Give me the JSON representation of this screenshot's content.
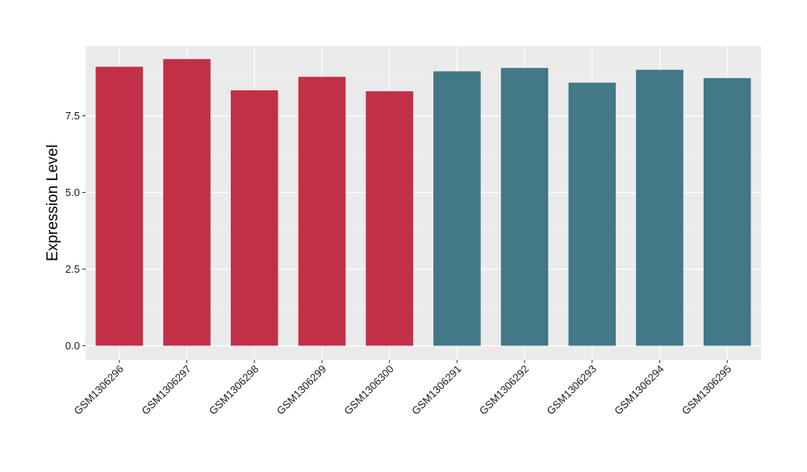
{
  "chart_data": {
    "type": "bar",
    "title": "",
    "xlabel": "",
    "ylabel": "Expression Level",
    "ylim": [
      0,
      9.9
    ],
    "yticks": [
      0.0,
      2.5,
      5.0,
      7.5
    ],
    "ytick_labels": [
      "0.0",
      "2.5",
      "5.0",
      "7.5"
    ],
    "grid": true,
    "legend": "none",
    "categories": [
      "GSM1306296",
      "GSM1306297",
      "GSM1306298",
      "GSM1306299",
      "GSM1306300",
      "GSM1306291",
      "GSM1306292",
      "GSM1306293",
      "GSM1306294",
      "GSM1306295"
    ],
    "values": [
      9.1,
      9.35,
      8.33,
      8.77,
      8.3,
      8.95,
      9.06,
      8.58,
      9.0,
      8.73
    ],
    "bar_colors": [
      "#c13047",
      "#c13047",
      "#c13047",
      "#c13047",
      "#c13047",
      "#427888",
      "#427888",
      "#427888",
      "#427888",
      "#427888"
    ]
  },
  "colors": {
    "panel_background": "#ebebeb",
    "grid_major": "#ffffff",
    "grid_minor": "#f4f4f4",
    "tick": "#333333"
  }
}
